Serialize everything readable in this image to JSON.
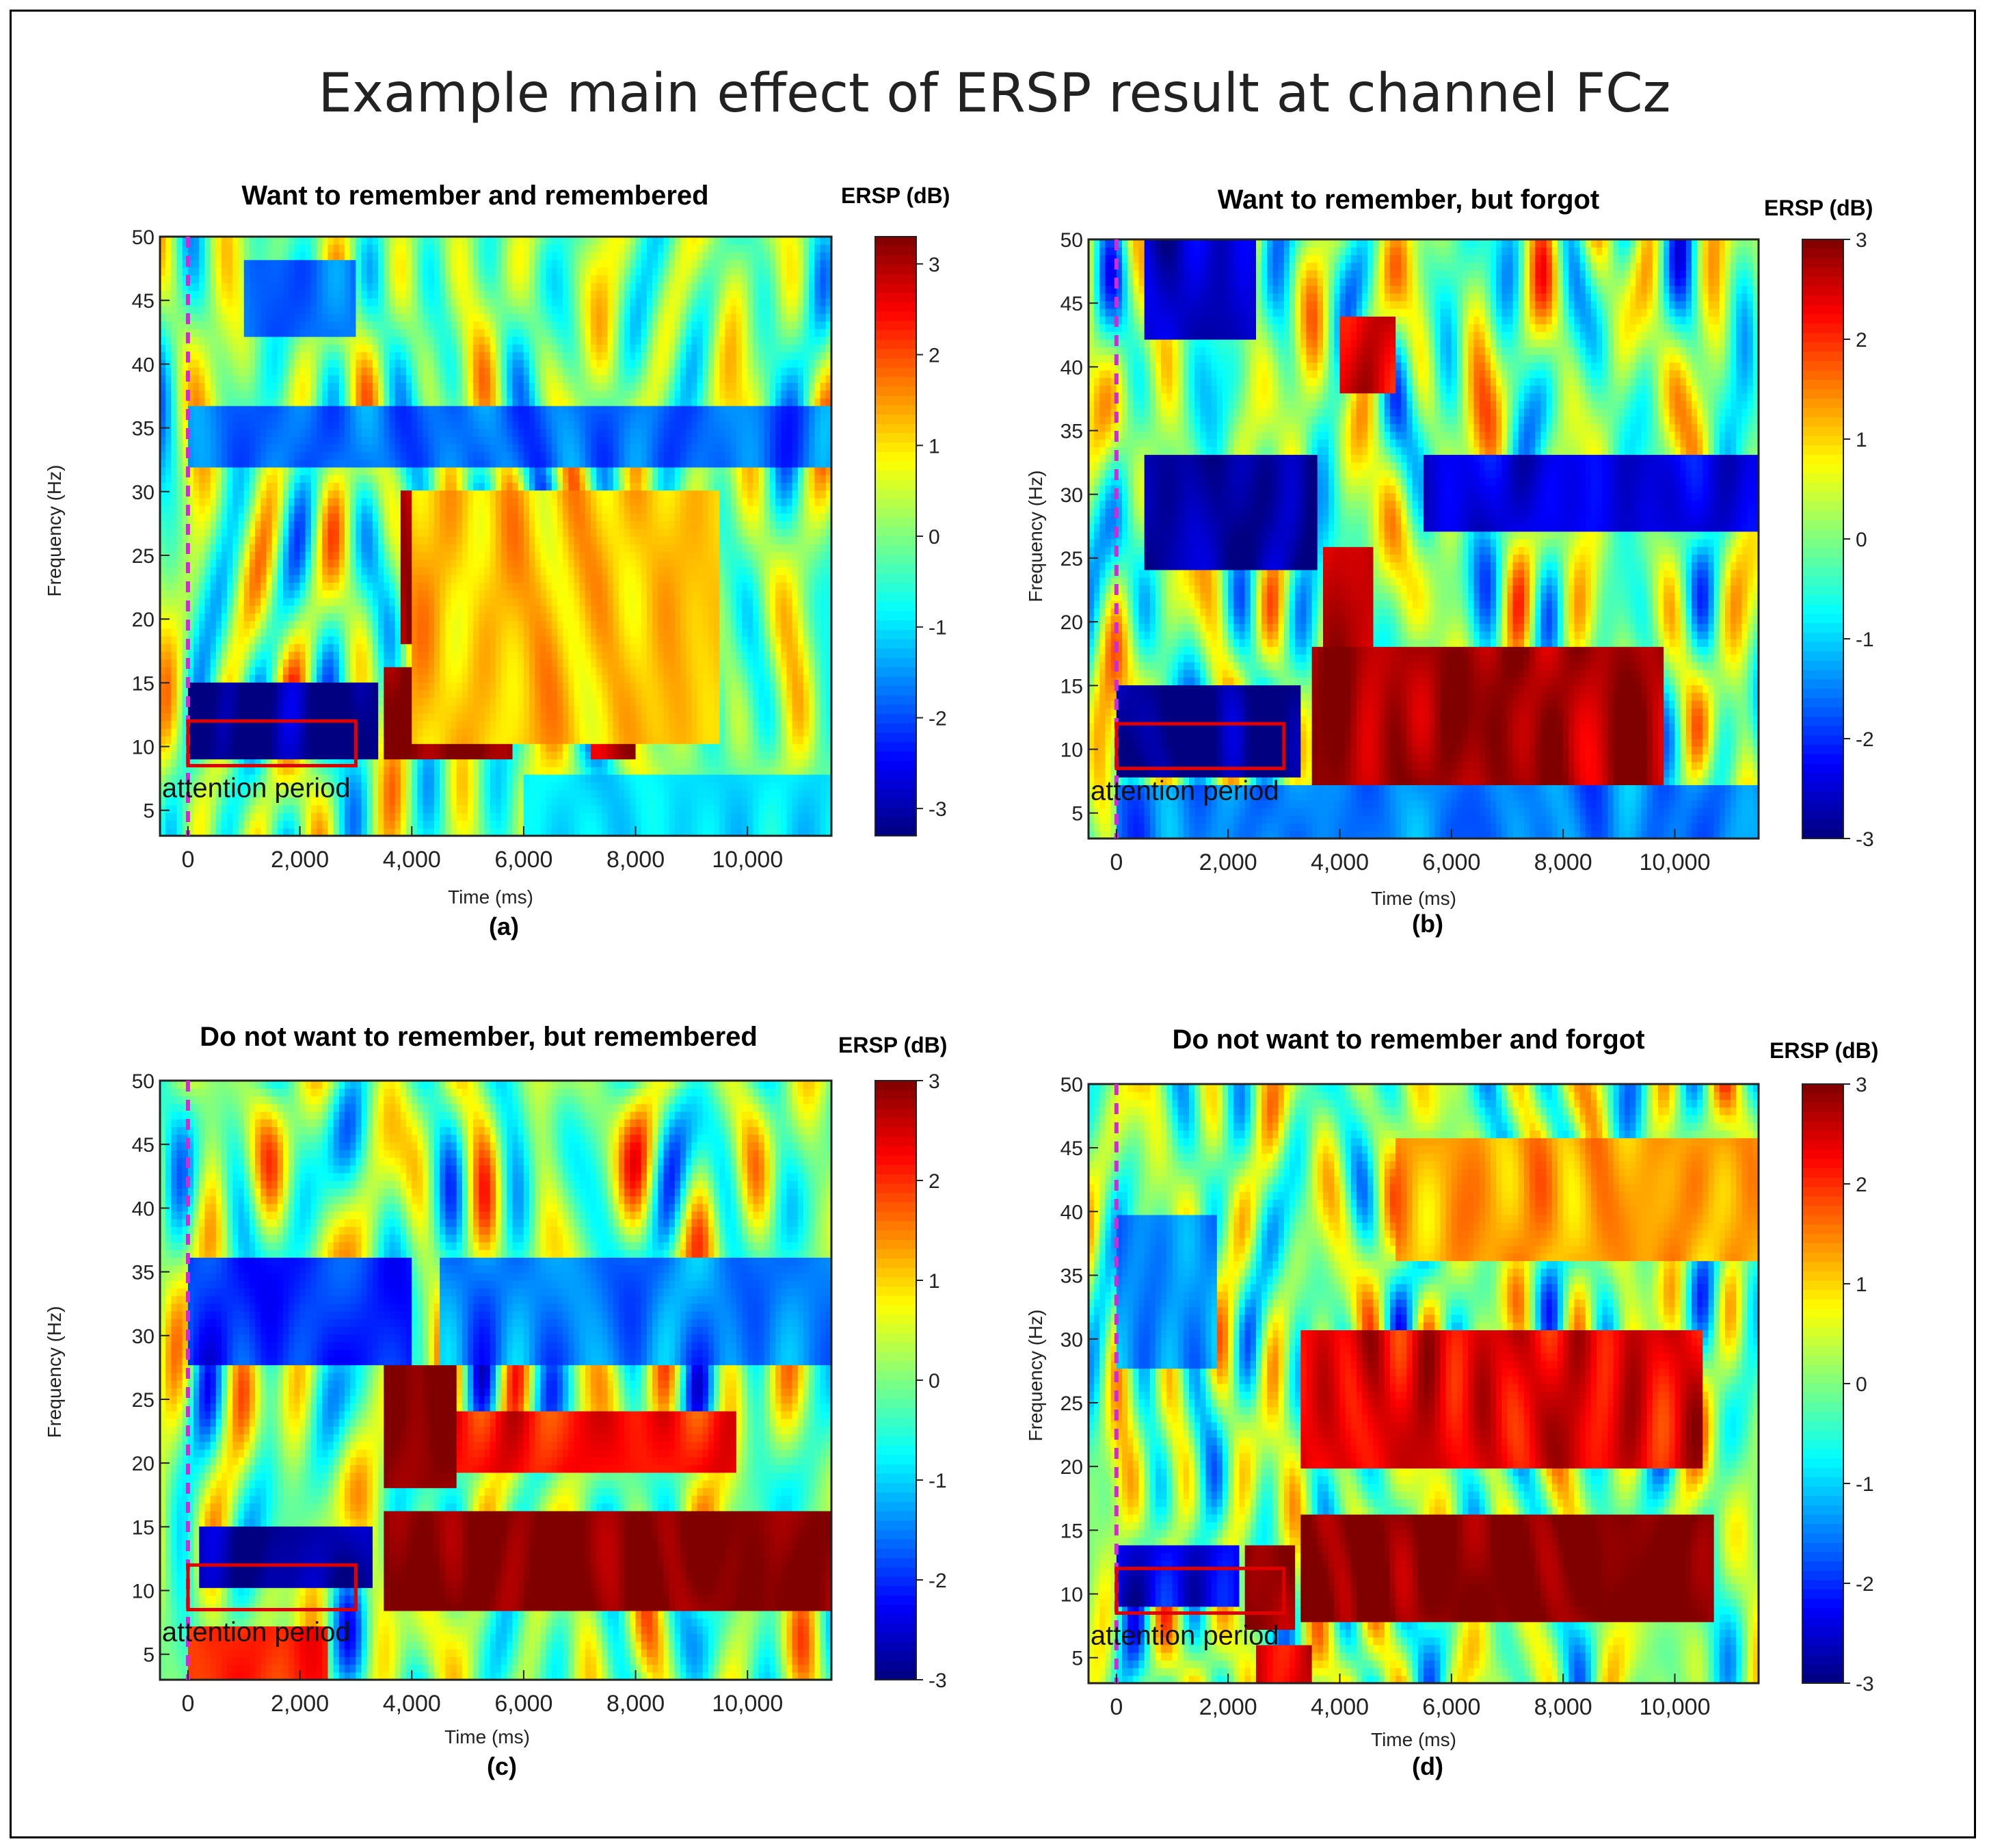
{
  "figure": {
    "title": "Example main effect of ERSP result at channel FCz"
  },
  "chart_data": [
    {
      "type": "heatmap",
      "panel_label": "(a)",
      "title": "Want to remember and remembered",
      "xlabel": "Time (ms)",
      "ylabel": "Frequency (Hz)",
      "colorbar_title": "ERSP (dB)",
      "colorbar_ticks": [
        "3",
        "2",
        "1",
        "0",
        "-1",
        "-2",
        "-3"
      ],
      "colorbar_range": [
        -3.3,
        3.3
      ],
      "x_range": [
        -500,
        11500
      ],
      "y_range": [
        3,
        50
      ],
      "x_ticks": [
        {
          "value": 0,
          "label": "0"
        },
        {
          "value": 2000,
          "label": "2,000"
        },
        {
          "value": 4000,
          "label": "4,000"
        },
        {
          "value": 6000,
          "label": "6,000"
        },
        {
          "value": 8000,
          "label": "8,000"
        },
        {
          "value": 10000,
          "label": "10,000"
        }
      ],
      "y_ticks": [
        5,
        10,
        15,
        20,
        25,
        30,
        35,
        40,
        45,
        50
      ],
      "stimulus_onset_ms": 0,
      "annotation": {
        "text": "attention period",
        "x_range_ms": [
          0,
          3000
        ],
        "y_range_hz": [
          8.5,
          12
        ]
      },
      "features": [
        {
          "t": [
            0,
            3400
          ],
          "f": [
            9,
            15
          ],
          "value": -3.3
        },
        {
          "t": [
            3500,
            5800
          ],
          "f": [
            9,
            16
          ],
          "value": 3.3
        },
        {
          "t": [
            7200,
            8000
          ],
          "f": [
            9,
            15
          ],
          "value": 3.0
        },
        {
          "t": [
            3800,
            4600
          ],
          "f": [
            18,
            30
          ],
          "value": 3.0
        },
        {
          "t": [
            0,
            11500
          ],
          "f": [
            32,
            37
          ],
          "value": -1.8
        },
        {
          "t": [
            1000,
            3000
          ],
          "f": [
            42,
            48
          ],
          "value": -1.8
        },
        {
          "t": [
            4000,
            9500
          ],
          "f": [
            10,
            30
          ],
          "value": 1.2
        },
        {
          "t": [
            6000,
            11500
          ],
          "f": [
            3,
            8
          ],
          "value": -1.0
        }
      ],
      "baseline": 0.0
    },
    {
      "type": "heatmap",
      "panel_label": "(b)",
      "title": "Want to remember, but forgot",
      "xlabel": "Time (ms)",
      "ylabel": "Frequency (Hz)",
      "colorbar_title": "ERSP (dB)",
      "colorbar_ticks": [
        "3",
        "2",
        "1",
        "0",
        "-1",
        "-2",
        "-3"
      ],
      "colorbar_range": [
        -3.0,
        3.0
      ],
      "x_range": [
        -500,
        11500
      ],
      "y_range": [
        3,
        50
      ],
      "x_ticks": [
        {
          "value": 0,
          "label": "0"
        },
        {
          "value": 2000,
          "label": "2,000"
        },
        {
          "value": 4000,
          "label": "4,000"
        },
        {
          "value": 6000,
          "label": "6,000"
        },
        {
          "value": 8000,
          "label": "8,000"
        },
        {
          "value": 10000,
          "label": "10,000"
        }
      ],
      "y_ticks": [
        5,
        10,
        15,
        20,
        25,
        30,
        35,
        40,
        45,
        50
      ],
      "stimulus_onset_ms": 0,
      "annotation": {
        "text": "attention period",
        "x_range_ms": [
          0,
          3000
        ],
        "y_range_hz": [
          8.5,
          12
        ]
      },
      "features": [
        {
          "t": [
            0,
            3300
          ],
          "f": [
            8,
            15
          ],
          "value": -3.0
        },
        {
          "t": [
            3500,
            9800
          ],
          "f": [
            7,
            18
          ],
          "value": 2.8
        },
        {
          "t": [
            3700,
            4600
          ],
          "f": [
            18,
            26
          ],
          "value": 2.6
        },
        {
          "t": [
            500,
            3600
          ],
          "f": [
            24,
            33
          ],
          "value": -2.8
        },
        {
          "t": [
            5500,
            11500
          ],
          "f": [
            27,
            33
          ],
          "value": -2.4
        },
        {
          "t": [
            500,
            2500
          ],
          "f": [
            42,
            50
          ],
          "value": -2.6
        },
        {
          "t": [
            4000,
            5000
          ],
          "f": [
            38,
            44
          ],
          "value": 2.5
        },
        {
          "t": [
            0,
            11500
          ],
          "f": [
            3,
            7
          ],
          "value": -1.5
        }
      ],
      "baseline": 0.0
    },
    {
      "type": "heatmap",
      "panel_label": "(c)",
      "title": "Do not want to remember, but remembered",
      "xlabel": "Time (ms)",
      "ylabel": "Frequency (Hz)",
      "colorbar_title": "ERSP (dB)",
      "colorbar_ticks": [
        "3",
        "2",
        "1",
        "0",
        "-1",
        "-2",
        "-3"
      ],
      "colorbar_range": [
        -3.0,
        3.0
      ],
      "x_range": [
        -500,
        11500
      ],
      "y_range": [
        3,
        50
      ],
      "x_ticks": [
        {
          "value": 0,
          "label": "0"
        },
        {
          "value": 2000,
          "label": "2,000"
        },
        {
          "value": 4000,
          "label": "4,000"
        },
        {
          "value": 6000,
          "label": "6,000"
        },
        {
          "value": 8000,
          "label": "8,000"
        },
        {
          "value": 10000,
          "label": "10,000"
        }
      ],
      "y_ticks": [
        5,
        10,
        15,
        20,
        25,
        30,
        35,
        40,
        45,
        50
      ],
      "stimulus_onset_ms": 0,
      "annotation": {
        "text": "attention period",
        "x_range_ms": [
          0,
          3000
        ],
        "y_range_hz": [
          8.5,
          12
        ]
      },
      "features": [
        {
          "t": [
            200,
            3300
          ],
          "f": [
            10,
            15
          ],
          "value": -2.8
        },
        {
          "t": [
            3500,
            11500
          ],
          "f": [
            8.5,
            16.5
          ],
          "value": 3.0
        },
        {
          "t": [
            3500,
            4800
          ],
          "f": [
            18,
            28
          ],
          "value": 3.0
        },
        {
          "t": [
            4800,
            9800
          ],
          "f": [
            19,
            24
          ],
          "value": 2.2
        },
        {
          "t": [
            0,
            4000
          ],
          "f": [
            28,
            36
          ],
          "value": -2.0
        },
        {
          "t": [
            4500,
            11500
          ],
          "f": [
            28,
            36
          ],
          "value": -1.5
        },
        {
          "t": [
            0,
            2500
          ],
          "f": [
            3,
            7
          ],
          "value": 2.0
        }
      ],
      "baseline": 0.0
    },
    {
      "type": "heatmap",
      "panel_label": "(d)",
      "title": "Do not want to remember and forgot",
      "xlabel": "Time (ms)",
      "ylabel": "Frequency (Hz)",
      "colorbar_title": "ERSP (dB)",
      "colorbar_ticks": [
        "3",
        "2",
        "1",
        "0",
        "-1",
        "-2",
        "-3"
      ],
      "colorbar_range": [
        -3.0,
        3.0
      ],
      "x_range": [
        -500,
        11500
      ],
      "y_range": [
        3,
        50
      ],
      "x_ticks": [
        {
          "value": 0,
          "label": "0"
        },
        {
          "value": 2000,
          "label": "2,000"
        },
        {
          "value": 4000,
          "label": "4,000"
        },
        {
          "value": 6000,
          "label": "6,000"
        },
        {
          "value": 8000,
          "label": "8,000"
        },
        {
          "value": 10000,
          "label": "10,000"
        }
      ],
      "y_ticks": [
        5,
        10,
        15,
        20,
        25,
        30,
        35,
        40,
        45,
        50
      ],
      "stimulus_onset_ms": 0,
      "annotation": {
        "text": "attention period",
        "x_range_ms": [
          0,
          3000
        ],
        "y_range_hz": [
          8.5,
          12
        ]
      },
      "features": [
        {
          "t": [
            0,
            2200
          ],
          "f": [
            9,
            14
          ],
          "value": -2.4
        },
        {
          "t": [
            2300,
            3200
          ],
          "f": [
            7,
            14
          ],
          "value": 3.0
        },
        {
          "t": [
            3300,
            10700
          ],
          "f": [
            8,
            16
          ],
          "value": 3.0
        },
        {
          "t": [
            3300,
            10500
          ],
          "f": [
            20,
            31
          ],
          "value": 2.4
        },
        {
          "t": [
            2500,
            3500
          ],
          "f": [
            3,
            6
          ],
          "value": 2.5
        },
        {
          "t": [
            0,
            1800
          ],
          "f": [
            28,
            40
          ],
          "value": -1.4
        },
        {
          "t": [
            5000,
            11500
          ],
          "f": [
            36,
            46
          ],
          "value": 1.3
        }
      ],
      "baseline": 0.0
    }
  ]
}
